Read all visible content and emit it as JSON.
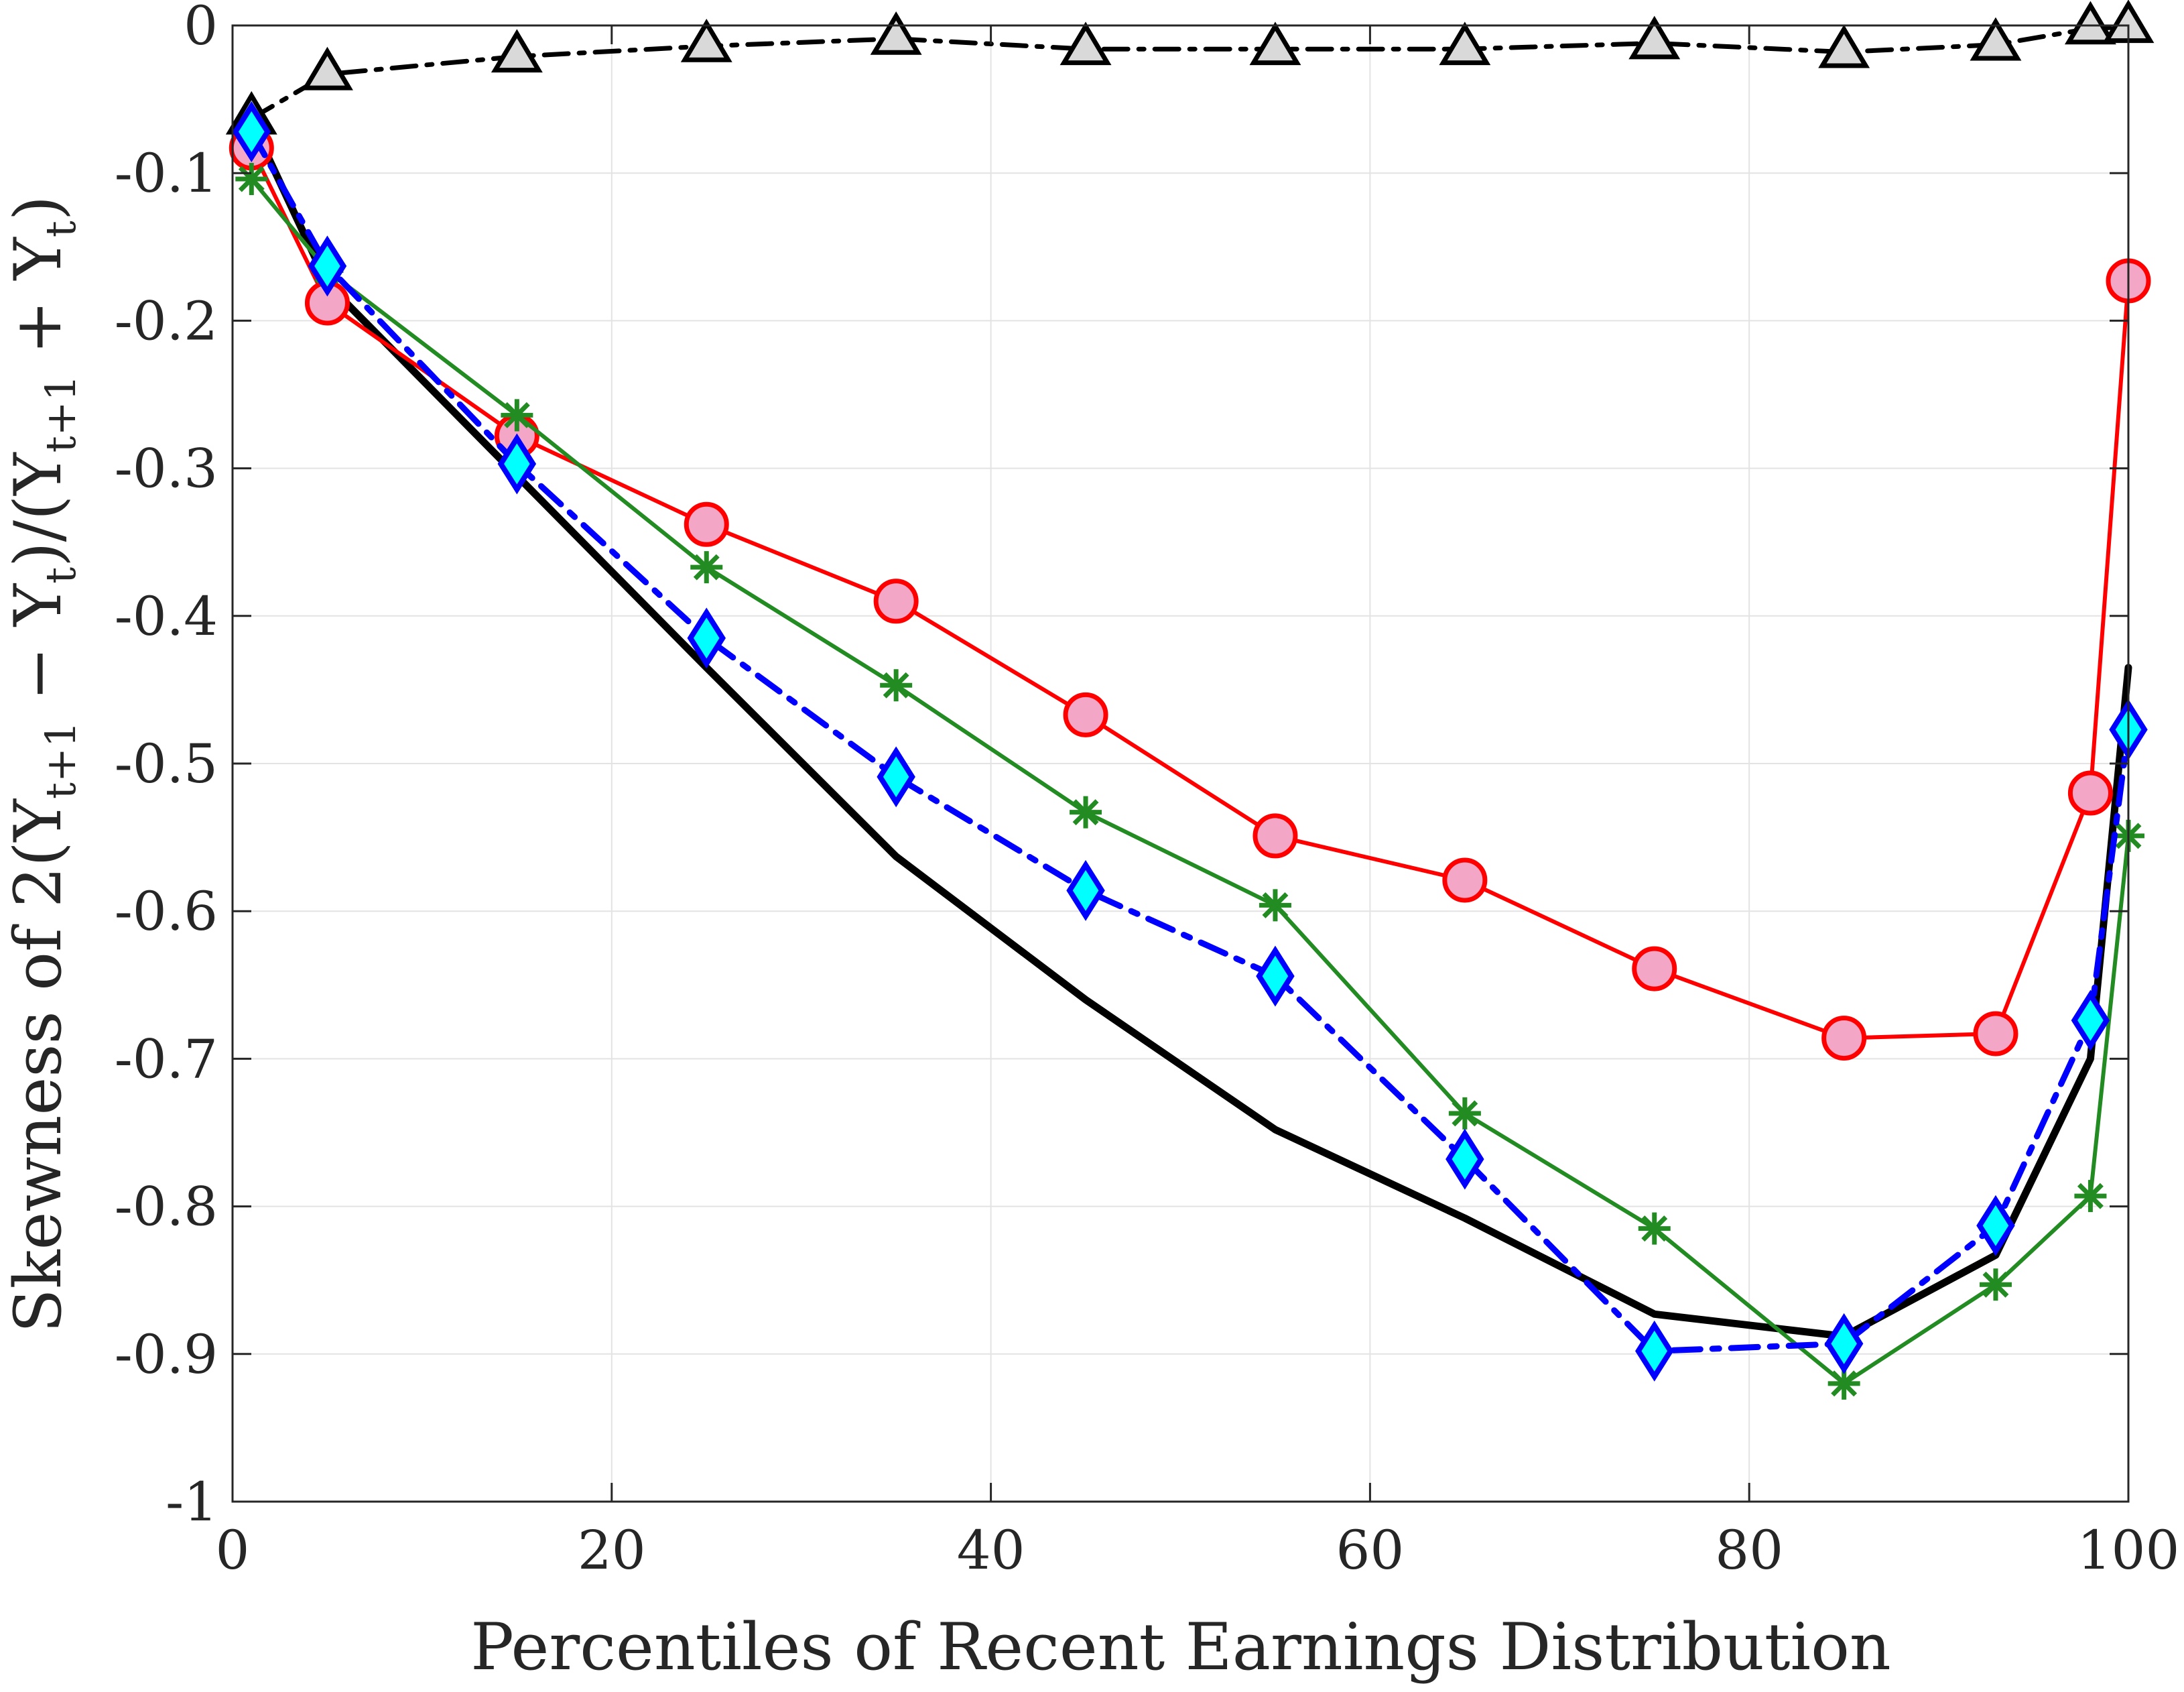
{
  "chart_data": {
    "type": "line",
    "xlabel": "Percentiles of Recent Earnings Distribution",
    "ylabel": {
      "prefix": "Skewness of 2(Y",
      "sub1": "t+1",
      "mid1": " − Y",
      "sub2": "t",
      "mid2": ")/(Y",
      "sub3": "t+1",
      "mid3": " + Y",
      "sub4": "t",
      "suffix": ")"
    },
    "xlim": [
      0,
      100
    ],
    "ylim": [
      -1,
      0
    ],
    "xticks": [
      0,
      20,
      40,
      60,
      80,
      100
    ],
    "xtick_labels": [
      "0",
      "20",
      "40",
      "60",
      "80",
      "100"
    ],
    "yticks": [
      0,
      -0.1,
      -0.2,
      -0.3,
      -0.4,
      -0.5,
      -0.6,
      -0.7,
      -0.8,
      -0.9,
      -1
    ],
    "ytick_labels": [
      "0",
      "-0.1",
      "-0.2",
      "-0.3",
      "-0.4",
      "-0.5",
      "-0.6",
      "-0.7",
      "-0.8",
      "-0.9",
      "-1"
    ],
    "grid": true,
    "series": [
      {
        "style": "black-solid",
        "color": "#000000",
        "marker": "none",
        "x": [
          1,
          5,
          15,
          25,
          35,
          45,
          55,
          65,
          75,
          85,
          93,
          98,
          100
        ],
        "y": [
          -0.065,
          -0.175,
          -0.305,
          -0.435,
          -0.563,
          -0.66,
          -0.748,
          -0.808,
          -0.873,
          -0.888,
          -0.833,
          -0.7,
          -0.435
        ]
      },
      {
        "style": "black-dashdot-triangles",
        "color": "#000000",
        "marker_fill": "#d9d9d9",
        "marker": "triangle",
        "x": [
          1,
          5,
          15,
          25,
          35,
          45,
          55,
          65,
          75,
          85,
          93,
          98,
          100
        ],
        "y": [
          -0.063,
          -0.033,
          -0.021,
          -0.014,
          -0.009,
          -0.016,
          -0.016,
          -0.016,
          -0.012,
          -0.018,
          -0.013,
          -0.002,
          -0.001
        ]
      },
      {
        "style": "red-solid-circles",
        "color": "#ff0000",
        "marker_fill": "#f4a6c6",
        "marker": "circle",
        "x": [
          1,
          5,
          15,
          25,
          35,
          45,
          55,
          65,
          75,
          85,
          93,
          98,
          100
        ],
        "y": [
          -0.083,
          -0.188,
          -0.278,
          -0.338,
          -0.39,
          -0.467,
          -0.549,
          -0.579,
          -0.639,
          -0.686,
          -0.683,
          -0.52,
          -0.173
        ]
      },
      {
        "style": "green-solid-asterisks",
        "color": "#228b22",
        "marker": "asterisk",
        "x": [
          1,
          5,
          15,
          25,
          35,
          45,
          55,
          65,
          75,
          85,
          93,
          98,
          100
        ],
        "y": [
          -0.104,
          -0.166,
          -0.264,
          -0.367,
          -0.447,
          -0.533,
          -0.596,
          -0.737,
          -0.815,
          -0.92,
          -0.853,
          -0.793,
          -0.549
        ]
      },
      {
        "style": "blue-dashdot-diamonds",
        "color": "#0000ff",
        "marker_fill": "#00ffff",
        "marker": "diamond",
        "x": [
          1,
          5,
          15,
          25,
          35,
          45,
          55,
          65,
          75,
          85,
          93,
          98,
          100
        ],
        "y": [
          -0.072,
          -0.163,
          -0.297,
          -0.415,
          -0.509,
          -0.586,
          -0.644,
          -0.768,
          -0.898,
          -0.893,
          -0.813,
          -0.674,
          -0.477
        ]
      }
    ]
  }
}
